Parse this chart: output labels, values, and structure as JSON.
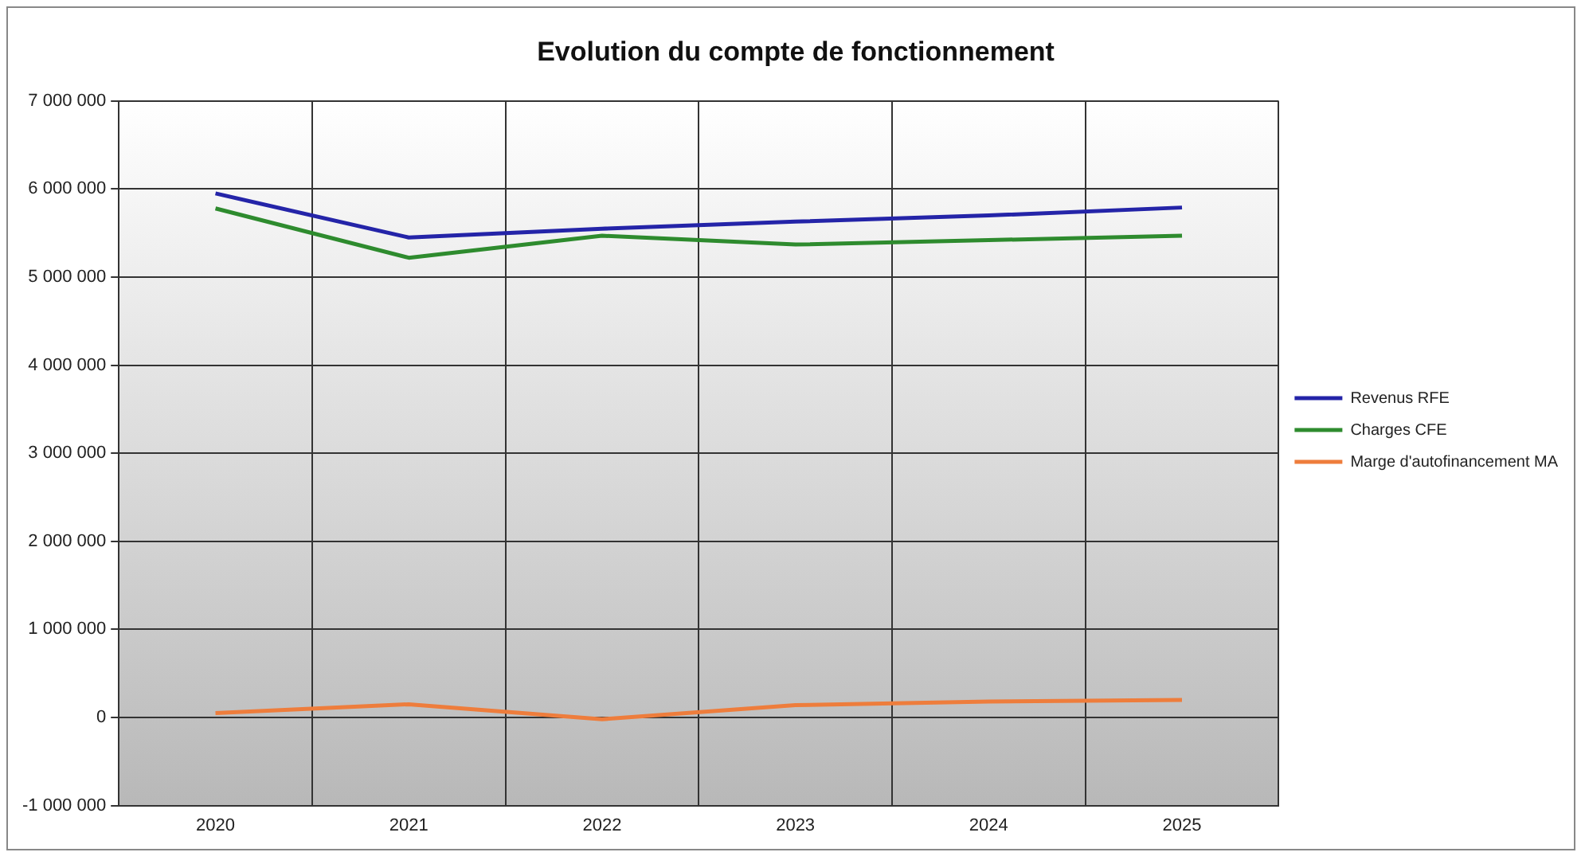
{
  "chart_data": {
    "type": "line",
    "title": "Evolution du compte de fonctionnement",
    "categories": [
      "2020",
      "2021",
      "2022",
      "2023",
      "2024",
      "2025"
    ],
    "series": [
      {
        "name": "Revenus RFE",
        "color": "#2424a8",
        "values": [
          5950000,
          5450000,
          5550000,
          5630000,
          5700000,
          5790000
        ]
      },
      {
        "name": "Charges CFE",
        "color": "#2e8b2e",
        "values": [
          5780000,
          5220000,
          5470000,
          5370000,
          5420000,
          5470000
        ]
      },
      {
        "name": "Marge d'autofinancement MA",
        "color": "#ee7d3c",
        "values": [
          50000,
          150000,
          -20000,
          140000,
          180000,
          200000
        ]
      }
    ],
    "ylim": [
      -1000000,
      7000000
    ],
    "yticks": [
      -1000000,
      0,
      1000000,
      2000000,
      3000000,
      4000000,
      5000000,
      6000000,
      7000000
    ],
    "grid": true,
    "legend": "right",
    "marker": "none",
    "line_style": "solid"
  }
}
